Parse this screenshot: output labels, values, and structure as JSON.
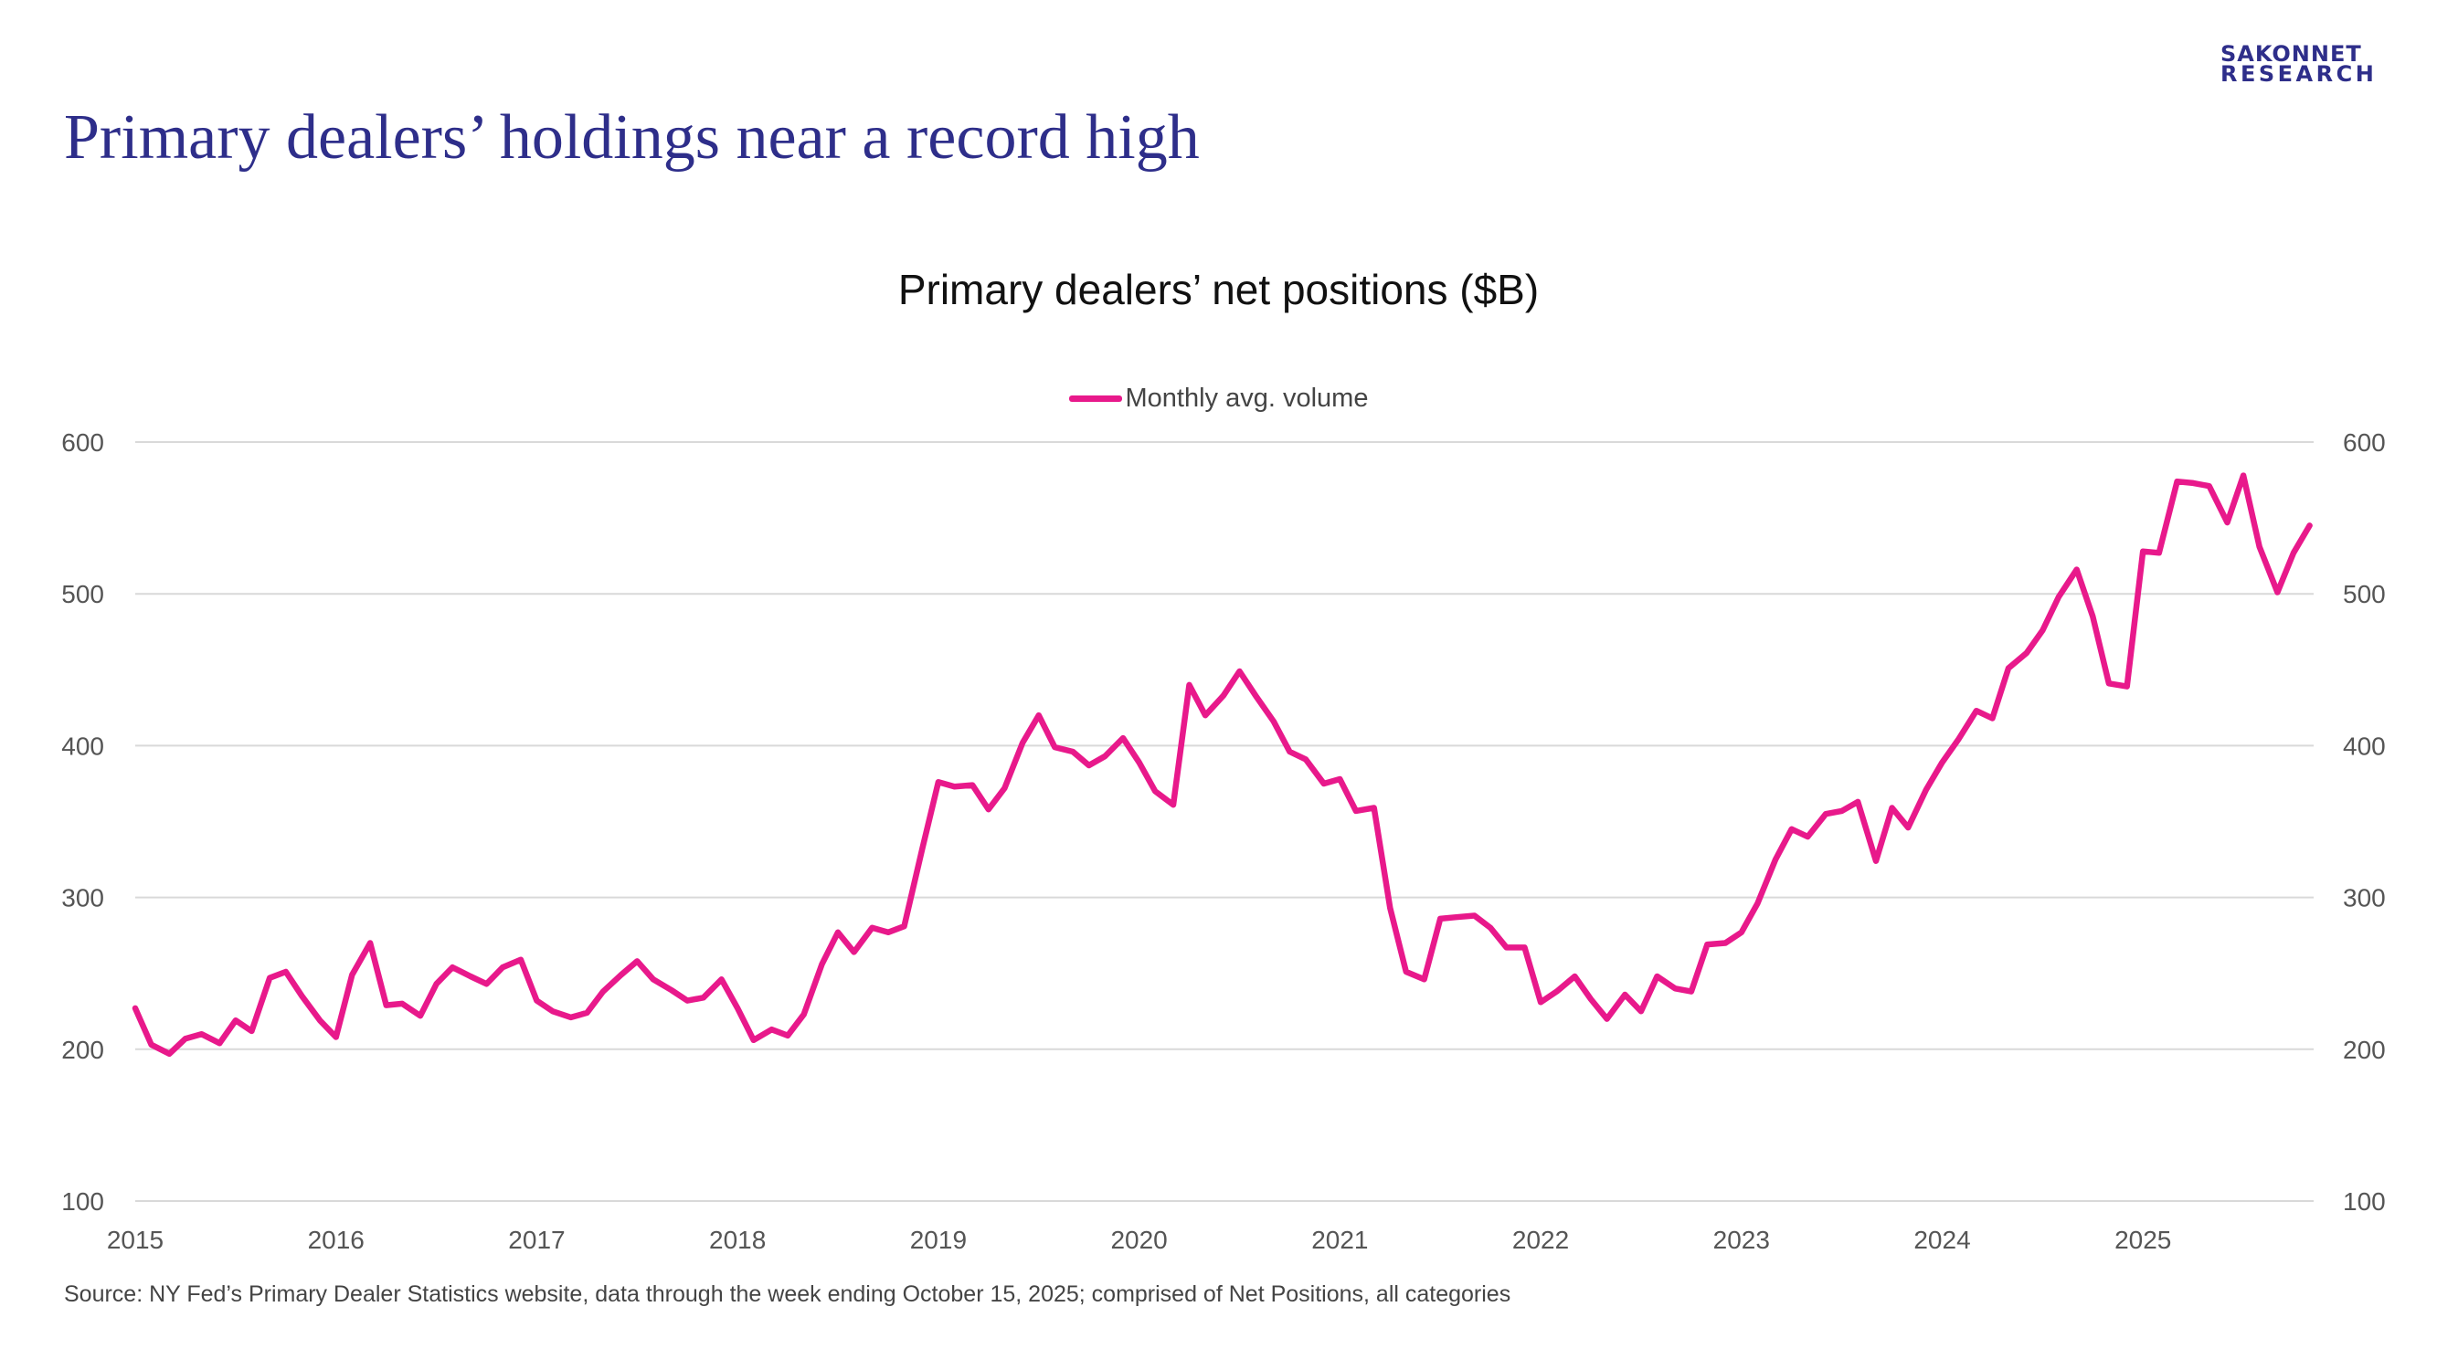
{
  "brand": {
    "line1": "SAKONNET",
    "line2": "RESEARCH"
  },
  "headline": "Primary dealers’ holdings near a record high",
  "source_note": "Source: NY Fed’s Primary Dealer Statistics website, data through the week ending October 15, 2025; comprised of Net Positions, all categories",
  "colors": {
    "series": "#e8198b",
    "brand": "#2e2e8a",
    "grid": "#d9d9d9"
  },
  "chart_data": {
    "type": "line",
    "title": "Primary dealers’ net positions ($B)",
    "legend_position": "top-center",
    "grid": true,
    "ylim": [
      100,
      600
    ],
    "yticks": [
      100,
      200,
      300,
      400,
      500,
      600
    ],
    "xlim": [
      2015.0,
      2025.85
    ],
    "xticks": [
      "2015",
      "2016",
      "2017",
      "2018",
      "2019",
      "2020",
      "2021",
      "2022",
      "2023",
      "2024",
      "2025"
    ],
    "series": [
      {
        "name": "Monthly avg. volume",
        "x": [
          2015.0,
          2015.08,
          2015.17,
          2015.25,
          2015.33,
          2015.42,
          2015.5,
          2015.58,
          2015.67,
          2015.75,
          2015.83,
          2015.92,
          2016.0,
          2016.08,
          2016.17,
          2016.25,
          2016.33,
          2016.42,
          2016.5,
          2016.58,
          2016.67,
          2016.75,
          2016.83,
          2016.92,
          2017.0,
          2017.08,
          2017.17,
          2017.25,
          2017.33,
          2017.42,
          2017.5,
          2017.58,
          2017.67,
          2017.75,
          2017.83,
          2017.92,
          2018.0,
          2018.08,
          2018.17,
          2018.25,
          2018.33,
          2018.42,
          2018.5,
          2018.58,
          2018.67,
          2018.75,
          2018.83,
          2018.92,
          2019.0,
          2019.08,
          2019.17,
          2019.25,
          2019.33,
          2019.42,
          2019.5,
          2019.58,
          2019.67,
          2019.75,
          2019.83,
          2019.92,
          2020.0,
          2020.08,
          2020.17,
          2020.25,
          2020.33,
          2020.42,
          2020.5,
          2020.58,
          2020.67,
          2020.75,
          2020.83,
          2020.92,
          2021.0,
          2021.08,
          2021.17,
          2021.25,
          2021.33,
          2021.42,
          2021.5,
          2021.58,
          2021.67,
          2021.75,
          2021.83,
          2021.92,
          2022.0,
          2022.08,
          2022.17,
          2022.25,
          2022.33,
          2022.42,
          2022.5,
          2022.58,
          2022.67,
          2022.75,
          2022.83,
          2022.92,
          2023.0,
          2023.08,
          2023.17,
          2023.25,
          2023.33,
          2023.42,
          2023.5,
          2023.58,
          2023.67,
          2023.75,
          2023.83,
          2023.92,
          2024.0,
          2024.08,
          2024.17,
          2024.25,
          2024.33,
          2024.42,
          2024.5,
          2024.58,
          2024.67,
          2024.75,
          2024.83,
          2024.92,
          2025.0,
          2025.08,
          2025.17,
          2025.25,
          2025.33,
          2025.42,
          2025.5,
          2025.58,
          2025.67,
          2025.75,
          2025.83
        ],
        "values": [
          227,
          203,
          197,
          207,
          210,
          204,
          219,
          212,
          247,
          251,
          235,
          219,
          208,
          249,
          270,
          229,
          230,
          222,
          243,
          254,
          248,
          243,
          254,
          259,
          232,
          225,
          221,
          224,
          238,
          249,
          258,
          246,
          239,
          232,
          234,
          246,
          227,
          206,
          213,
          209,
          223,
          256,
          277,
          264,
          280,
          277,
          281,
          332,
          376,
          373,
          374,
          358,
          372,
          402,
          420,
          399,
          396,
          387,
          393,
          405,
          389,
          370,
          361,
          440,
          420,
          433,
          449,
          433,
          416,
          396,
          391,
          375,
          378,
          357,
          359,
          293,
          251,
          246,
          286,
          287,
          288,
          280,
          267,
          267,
          231,
          238,
          248,
          233,
          220,
          236,
          225,
          248,
          240,
          238,
          269,
          270,
          277,
          296,
          325,
          345,
          340,
          355,
          357,
          363,
          324,
          359,
          346,
          371,
          389,
          404,
          423,
          418,
          451,
          461,
          476,
          498,
          516,
          485,
          441,
          439,
          528,
          527,
          574,
          573,
          571,
          547,
          578,
          531,
          501,
          527,
          545
        ]
      }
    ]
  }
}
